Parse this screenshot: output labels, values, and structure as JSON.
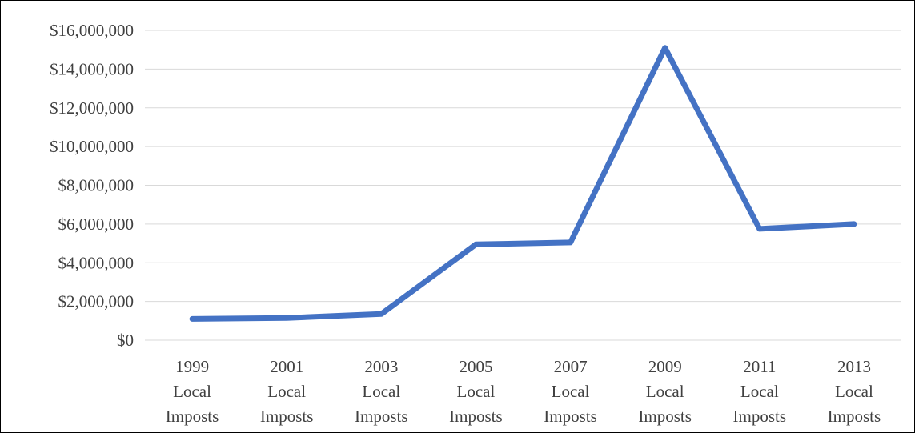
{
  "chart_data": {
    "type": "line",
    "title": "",
    "xlabel": "",
    "ylabel": "",
    "categories": [
      [
        "1999",
        "Local",
        "Imposts"
      ],
      [
        "2001",
        "Local",
        "Imposts"
      ],
      [
        "2003",
        "Local",
        "Imposts"
      ],
      [
        "2005",
        "Local",
        "Imposts"
      ],
      [
        "2007",
        "Local",
        "Imposts"
      ],
      [
        "2009",
        "Local",
        "Imposts"
      ],
      [
        "2011",
        "Local",
        "Imposts"
      ],
      [
        "2013",
        "Local",
        "Imposts"
      ]
    ],
    "series": [
      {
        "color": "#4472c4",
        "values": [
          1100000,
          1150000,
          1350000,
          4950000,
          5050000,
          15100000,
          5750000,
          6000000
        ]
      }
    ],
    "ylim": [
      0,
      16000000
    ],
    "y_ticks": [
      0,
      2000000,
      4000000,
      6000000,
      8000000,
      10000000,
      12000000,
      14000000,
      16000000
    ],
    "y_tick_labels": [
      "$0",
      "$2,000,000",
      "$4,000,000",
      "$6,000,000",
      "$8,000,000",
      "$10,000,000",
      "$12,000,000",
      "$14,000,000",
      "$16,000,000"
    ],
    "grid": true,
    "legend": "none"
  }
}
